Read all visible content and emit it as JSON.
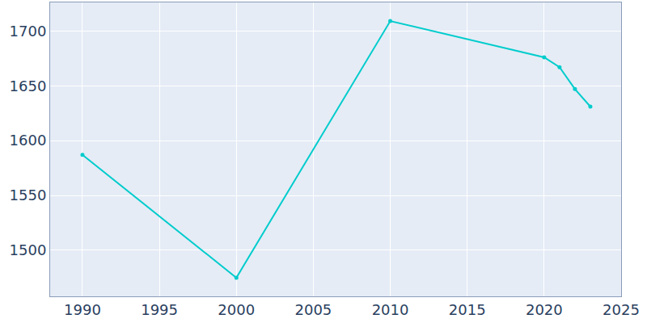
{
  "chart_data": {
    "type": "line",
    "x": [
      1990,
      2000,
      2010,
      2020,
      2021,
      2022,
      2023
    ],
    "values": [
      1587,
      1475,
      1709,
      1676,
      1667,
      1647,
      1631
    ],
    "color": "#00cccc",
    "marker": "circle",
    "xlim": [
      1987.9,
      2025
    ],
    "xticks": [
      1990,
      1995,
      2000,
      2005,
      2010,
      2015,
      2020,
      2025
    ],
    "ylim": [
      1458,
      1726
    ],
    "yticks": [
      1500,
      1550,
      1600,
      1650,
      1700
    ],
    "grid": true
  }
}
